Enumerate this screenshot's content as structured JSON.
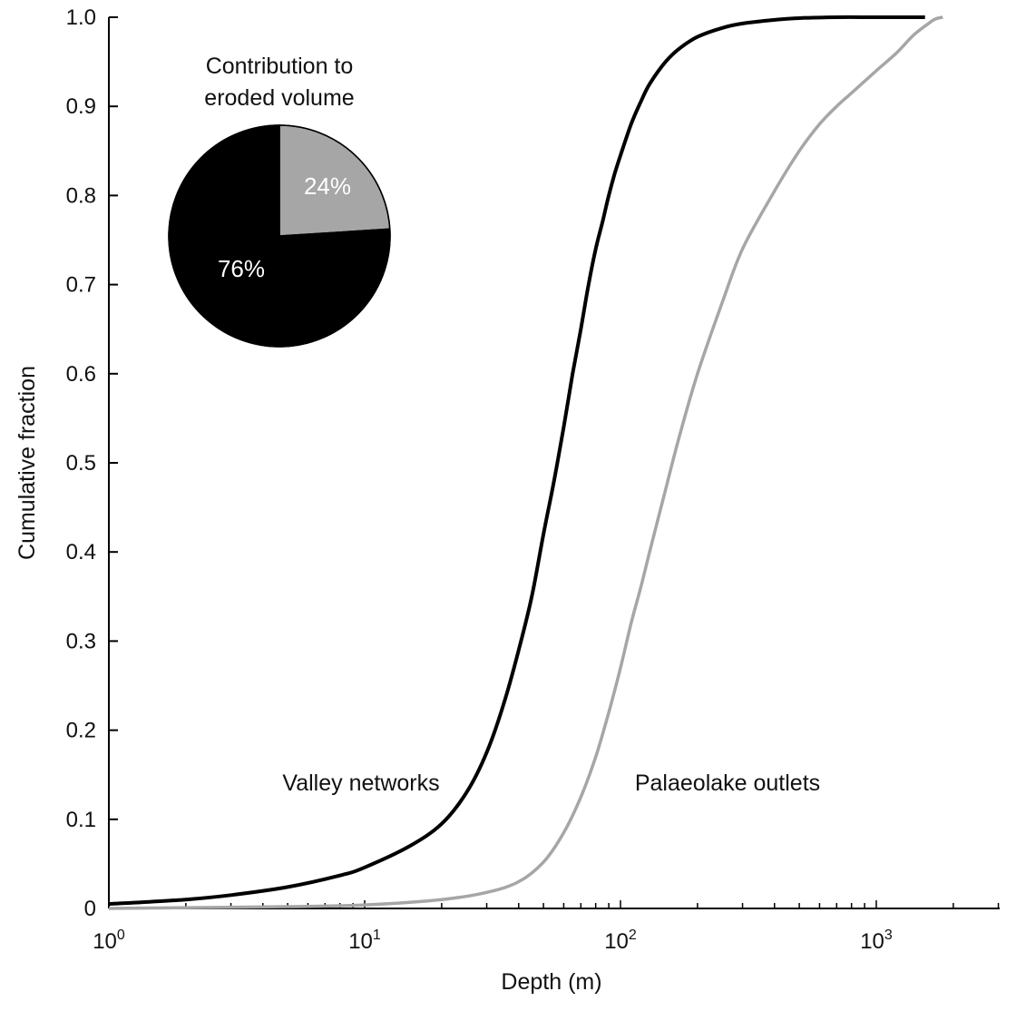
{
  "chart_data": {
    "type": "line",
    "xlabel": "Depth (m)",
    "ylabel": "Cumulative fraction",
    "xscale": "log",
    "xlim": [
      1,
      3200
    ],
    "ylim": [
      0,
      1.0
    ],
    "x_ticks": [
      {
        "value": 1,
        "base": "10",
        "exp": "0"
      },
      {
        "value": 10,
        "base": "10",
        "exp": "1"
      },
      {
        "value": 100,
        "base": "10",
        "exp": "2"
      },
      {
        "value": 1000,
        "base": "10",
        "exp": "3"
      }
    ],
    "y_ticks": [
      {
        "value": 0,
        "label": "0"
      },
      {
        "value": 0.1,
        "label": "0.1"
      },
      {
        "value": 0.2,
        "label": "0.2"
      },
      {
        "value": 0.3,
        "label": "0.3"
      },
      {
        "value": 0.4,
        "label": "0.4"
      },
      {
        "value": 0.5,
        "label": "0.5"
      },
      {
        "value": 0.6,
        "label": "0.6"
      },
      {
        "value": 0.7,
        "label": "0.7"
      },
      {
        "value": 0.8,
        "label": "0.8"
      },
      {
        "value": 0.9,
        "label": "0.9"
      },
      {
        "value": 1.0,
        "label": "1.0"
      }
    ],
    "grid": false,
    "series": [
      {
        "name": "Valley networks",
        "color": "#000000",
        "x": [
          1,
          2,
          3,
          5,
          8,
          10,
          15,
          20,
          25,
          30,
          35,
          40,
          45,
          50,
          55,
          60,
          65,
          70,
          75,
          80,
          85,
          90,
          95,
          100,
          110,
          120,
          130,
          150,
          170,
          200,
          250,
          300,
          400,
          500,
          700,
          1000,
          1550
        ],
        "y": [
          0.005,
          0.01,
          0.015,
          0.024,
          0.037,
          0.046,
          0.07,
          0.095,
          0.13,
          0.175,
          0.23,
          0.29,
          0.35,
          0.42,
          0.48,
          0.54,
          0.6,
          0.65,
          0.7,
          0.74,
          0.77,
          0.8,
          0.825,
          0.845,
          0.88,
          0.905,
          0.925,
          0.95,
          0.965,
          0.978,
          0.988,
          0.993,
          0.997,
          0.999,
          1.0,
          1.0,
          1.0
        ]
      },
      {
        "name": "Palaeolake outlets",
        "color": "#a6a6a6",
        "x": [
          1,
          5,
          10,
          20,
          30,
          40,
          50,
          60,
          70,
          80,
          90,
          100,
          110,
          120,
          130,
          150,
          170,
          200,
          250,
          300,
          400,
          500,
          600,
          700,
          800,
          1000,
          1200,
          1400,
          1600,
          1700,
          1820
        ],
        "y": [
          0.0,
          0.002,
          0.004,
          0.01,
          0.018,
          0.03,
          0.052,
          0.085,
          0.125,
          0.17,
          0.22,
          0.27,
          0.32,
          0.36,
          0.4,
          0.47,
          0.53,
          0.6,
          0.68,
          0.74,
          0.805,
          0.85,
          0.88,
          0.9,
          0.915,
          0.94,
          0.96,
          0.98,
          0.993,
          0.998,
          1.0
        ]
      }
    ],
    "annotations": [
      {
        "text": "Valley networks",
        "series": 0
      },
      {
        "text": "Palaeolake outlets",
        "series": 1
      }
    ],
    "inset_pie": {
      "type": "pie",
      "title_lines": [
        "Contribution to",
        "eroded volume"
      ],
      "slices": [
        {
          "value": 24,
          "label": "24%",
          "color": "#a6a6a6"
        },
        {
          "value": 76,
          "label": "76%",
          "color": "#000000"
        }
      ]
    }
  }
}
